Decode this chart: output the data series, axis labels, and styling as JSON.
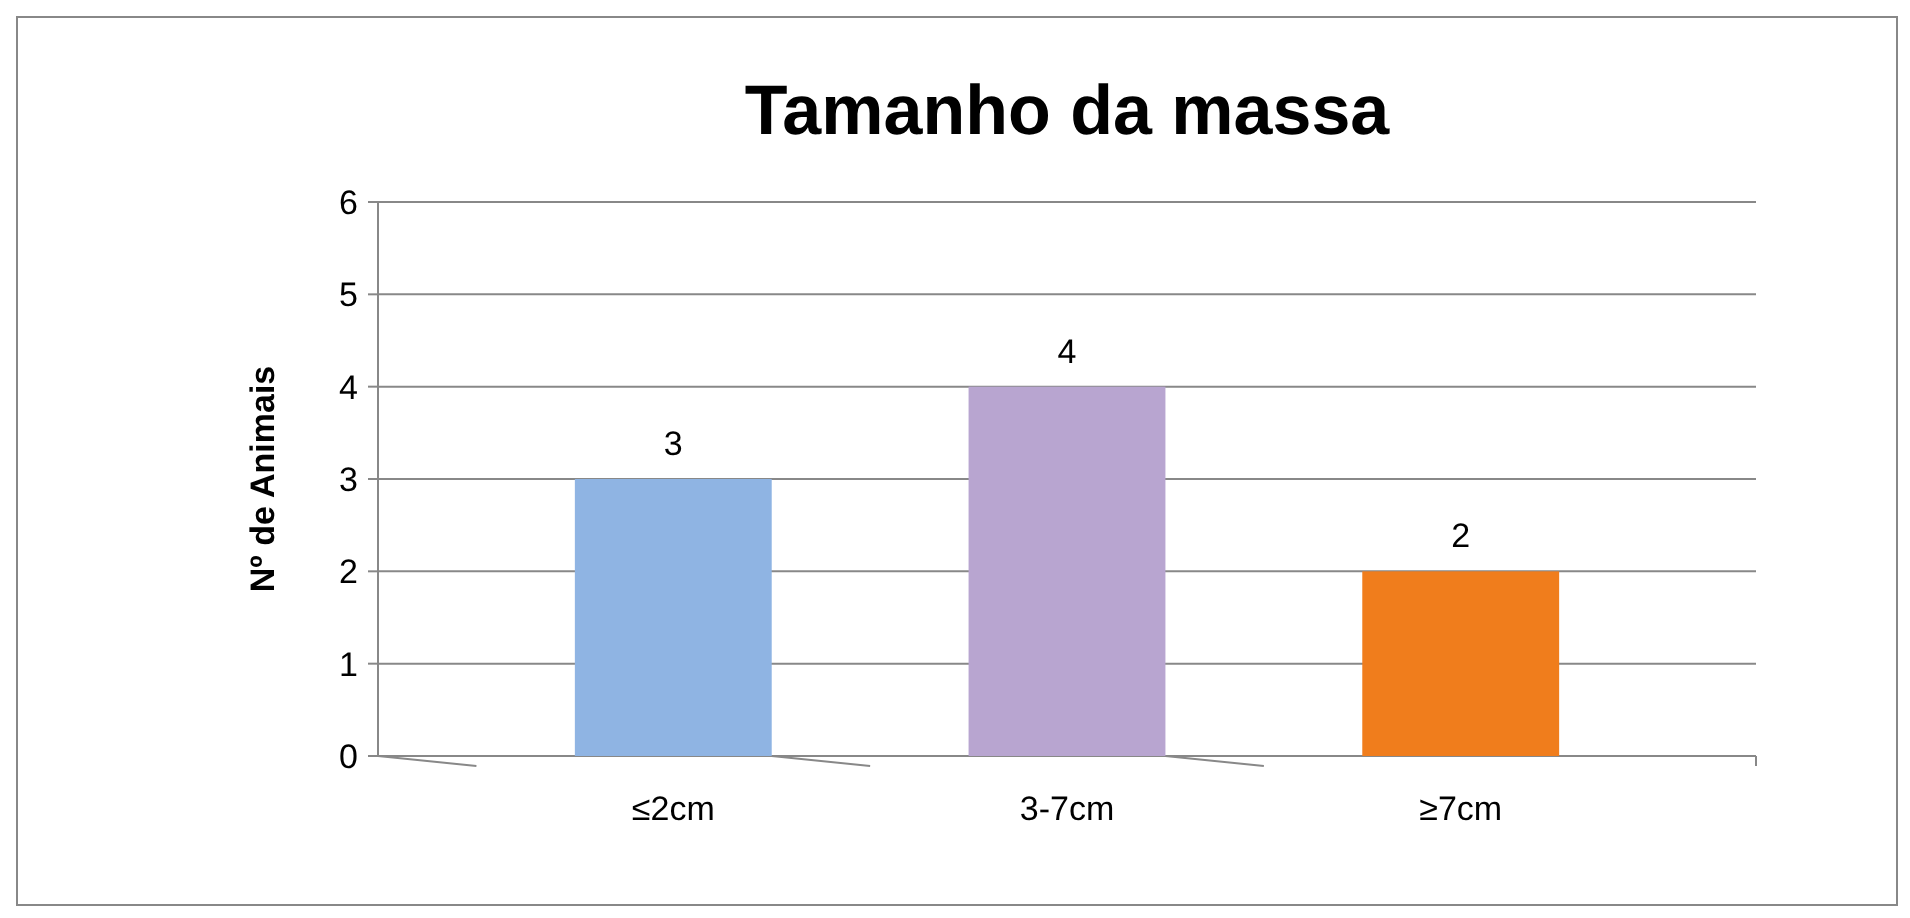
{
  "chart_data": {
    "type": "bar",
    "title": "Tamanho da massa",
    "ylabel": "Nº de Animais",
    "categories": [
      "≤2cm",
      "3-7cm",
      "≥7cm"
    ],
    "values": [
      3,
      4,
      2
    ],
    "colors": [
      "#8fb4e3",
      "#b8a5d0",
      "#f07d1c"
    ],
    "ylim": [
      0,
      6
    ],
    "yticks": [
      0,
      1,
      2,
      3,
      4,
      5,
      6
    ],
    "grid": "y",
    "data_labels": true
  }
}
